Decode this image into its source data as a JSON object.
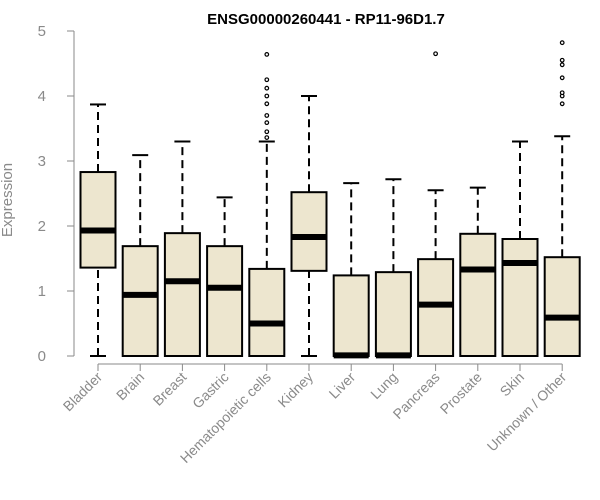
{
  "chart_data": {
    "type": "boxplot",
    "title": "ENSG00000260441 - RP11-96D1.7",
    "xlabel": "",
    "ylabel": "Expression",
    "ylim": [
      0,
      5
    ],
    "yticks": [
      0,
      1,
      2,
      3,
      4,
      5
    ],
    "grid": false,
    "legend": "none",
    "colors": {
      "box_fill": "#ede6cf",
      "box_stroke": "#000000",
      "median": "#000000",
      "axis": "#8a8a8a",
      "text": "#8a8a8a"
    },
    "categories": [
      "Bladder",
      "Brain",
      "Breast",
      "Gastric",
      "Hematopoietic cells",
      "Kidney",
      "Liver",
      "Lung",
      "Pancreas",
      "Prostate",
      "Skin",
      "Unknown / Other"
    ],
    "boxes": [
      {
        "category": "Bladder",
        "whisker_low": 0.0,
        "q1": 1.36,
        "median": 1.93,
        "q3": 2.83,
        "whisker_high": 3.87,
        "outliers": []
      },
      {
        "category": "Brain",
        "whisker_low": 0.0,
        "q1": 0.0,
        "median": 0.94,
        "q3": 1.69,
        "whisker_high": 3.09,
        "outliers": []
      },
      {
        "category": "Breast",
        "whisker_low": 0.0,
        "q1": 0.0,
        "median": 1.15,
        "q3": 1.89,
        "whisker_high": 3.3,
        "outliers": []
      },
      {
        "category": "Gastric",
        "whisker_low": 0.0,
        "q1": 0.0,
        "median": 1.05,
        "q3": 1.69,
        "whisker_high": 2.44,
        "outliers": []
      },
      {
        "category": "Hematopoietic cells",
        "whisker_low": 0.0,
        "q1": 0.0,
        "median": 0.5,
        "q3": 1.34,
        "whisker_high": 3.3,
        "outliers": [
          3.36,
          3.45,
          3.59,
          3.7,
          3.88,
          4.0,
          4.12,
          4.25,
          4.64
        ]
      },
      {
        "category": "Kidney",
        "whisker_low": 0.0,
        "q1": 1.31,
        "median": 1.83,
        "q3": 2.52,
        "whisker_high": 4.0,
        "outliers": []
      },
      {
        "category": "Liver",
        "whisker_low": 0.0,
        "q1": 0.0,
        "median": 0.01,
        "q3": 1.24,
        "whisker_high": 2.66,
        "outliers": []
      },
      {
        "category": "Lung",
        "whisker_low": 0.0,
        "q1": 0.0,
        "median": 0.01,
        "q3": 1.29,
        "whisker_high": 2.72,
        "outliers": []
      },
      {
        "category": "Pancreas",
        "whisker_low": 0.0,
        "q1": 0.0,
        "median": 0.79,
        "q3": 1.49,
        "whisker_high": 2.55,
        "outliers": [
          4.65
        ]
      },
      {
        "category": "Prostate",
        "whisker_low": 0.0,
        "q1": 0.0,
        "median": 1.33,
        "q3": 1.88,
        "whisker_high": 2.59,
        "outliers": []
      },
      {
        "category": "Skin",
        "whisker_low": 0.0,
        "q1": 0.0,
        "median": 1.43,
        "q3": 1.8,
        "whisker_high": 3.3,
        "outliers": []
      },
      {
        "category": "Unknown / Other",
        "whisker_low": 0.0,
        "q1": 0.0,
        "median": 0.59,
        "q3": 1.52,
        "whisker_high": 3.38,
        "outliers": [
          3.88,
          4.0,
          4.05,
          4.28,
          4.48,
          4.55,
          4.82
        ]
      }
    ]
  }
}
